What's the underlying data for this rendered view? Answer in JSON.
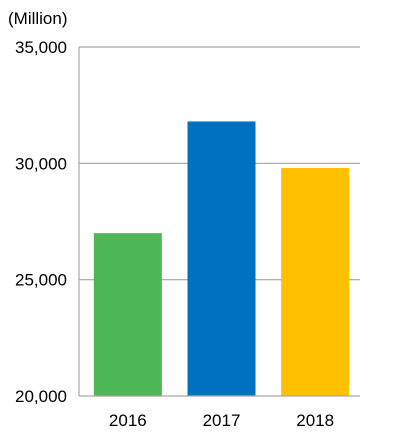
{
  "chart_data": {
    "type": "bar",
    "unit_label": "(Million)",
    "categories": [
      "2016",
      "2017",
      "2018"
    ],
    "values": [
      27000,
      31800,
      29800
    ],
    "bar_colors": [
      "#4DB657",
      "#0070C0",
      "#FFC000"
    ],
    "ylim": [
      20000,
      35000
    ],
    "y_ticks": [
      20000,
      25000,
      30000,
      35000
    ],
    "y_tick_labels": [
      "20,000",
      "25,000",
      "30,000",
      "35,000"
    ],
    "gridlines": true,
    "gridline_color": "#A6A6A6",
    "legend": "none",
    "title": "",
    "xlabel": "",
    "ylabel": ""
  }
}
